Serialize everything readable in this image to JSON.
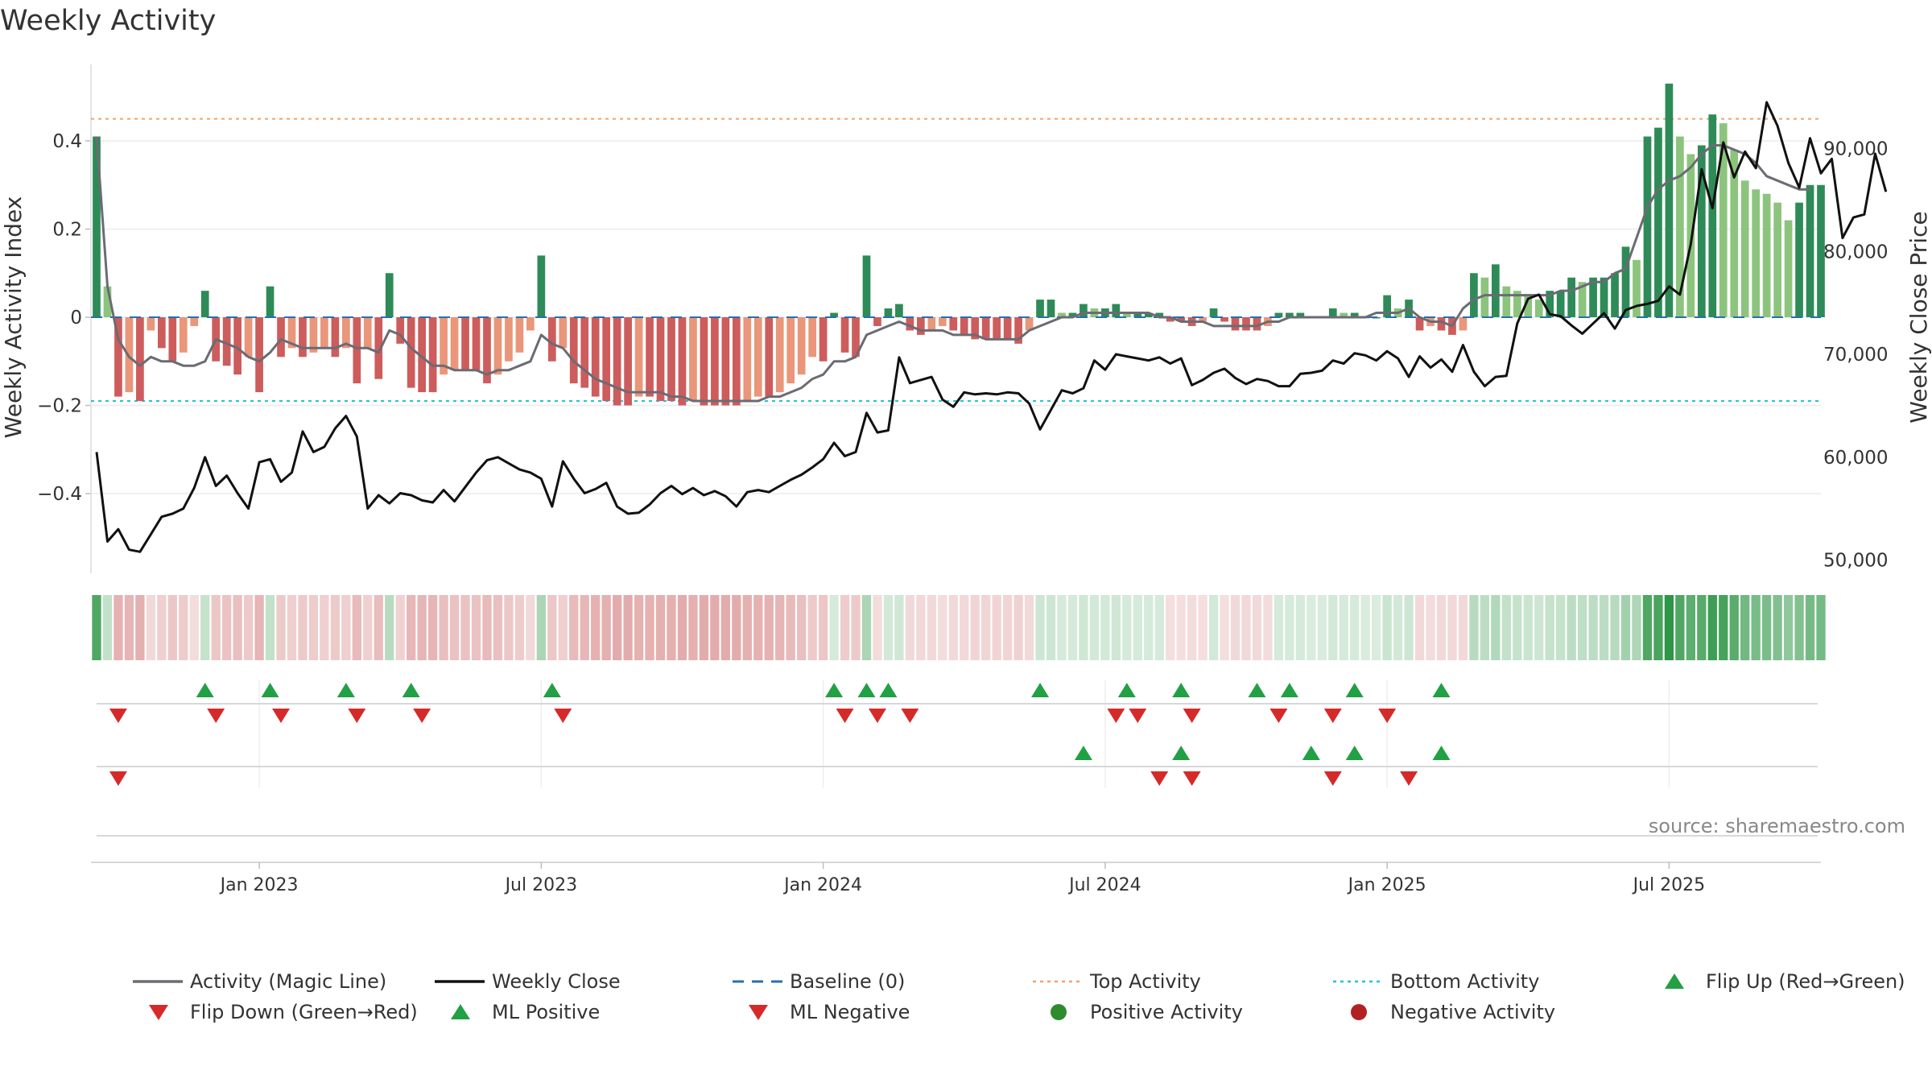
{
  "chart_data": {
    "type": "bar",
    "title": "Weekly Activity",
    "ylabel_left": "Weekly Activity Index",
    "ylabel_right": "Weekly Close Price",
    "source": "source: sharemaestro.com",
    "y_left_ticks": [
      "0.4",
      "0.2",
      "0",
      "−0.2",
      "−0.4"
    ],
    "y_left_tick_values": [
      0.4,
      0.2,
      0,
      -0.2,
      -0.4
    ],
    "y_left_range": [
      -0.58,
      0.57
    ],
    "y_right_ticks": [
      "90,000",
      "80,000",
      "70,000",
      "60,000",
      "50,000"
    ],
    "y_right_tick_values": [
      90000,
      80000,
      70000,
      60000,
      50000
    ],
    "y_right_range": [
      49000,
      96000
    ],
    "x_ticks": [
      "Jan 2023",
      "Jul 2023",
      "Jan 2024",
      "Jul 2024",
      "Jan 2025",
      "Jul 2025"
    ],
    "x_tick_weeks": [
      15,
      41,
      67,
      93,
      119,
      145
    ],
    "top_activity": 0.45,
    "bottom_activity": -0.19,
    "activity": [
      0.41,
      0.07,
      -0.18,
      -0.17,
      -0.19,
      -0.03,
      -0.07,
      -0.1,
      -0.08,
      -0.02,
      0.06,
      -0.1,
      -0.11,
      -0.13,
      -0.09,
      -0.17,
      0.07,
      -0.09,
      -0.07,
      -0.09,
      -0.08,
      -0.07,
      -0.09,
      -0.07,
      -0.15,
      -0.07,
      -0.14,
      0.1,
      -0.06,
      -0.16,
      -0.17,
      -0.17,
      -0.13,
      -0.12,
      -0.12,
      -0.12,
      -0.15,
      -0.13,
      -0.1,
      -0.08,
      -0.03,
      0.14,
      -0.1,
      -0.07,
      -0.15,
      -0.16,
      -0.18,
      -0.19,
      -0.2,
      -0.2,
      -0.18,
      -0.18,
      -0.19,
      -0.19,
      -0.2,
      -0.19,
      -0.2,
      -0.2,
      -0.2,
      -0.2,
      -0.19,
      -0.18,
      -0.18,
      -0.17,
      -0.15,
      -0.13,
      -0.09,
      -0.1,
      0.01,
      -0.08,
      -0.09,
      0.14,
      -0.02,
      0.02,
      0.03,
      -0.03,
      -0.04,
      -0.03,
      -0.02,
      -0.03,
      -0.04,
      -0.05,
      -0.05,
      -0.05,
      -0.05,
      -0.06,
      -0.03,
      0.04,
      0.04,
      0.01,
      0.01,
      0.03,
      0.02,
      0.02,
      0.03,
      0.01,
      0.01,
      0.01,
      0.01,
      -0.01,
      -0.01,
      -0.02,
      -0.01,
      0.02,
      -0.01,
      -0.03,
      -0.03,
      -0.03,
      -0.02,
      0.01,
      0.01,
      0.01,
      0.0,
      0.0,
      0.02,
      0.01,
      0.01,
      0.0,
      0.0,
      0.05,
      0.02,
      0.04,
      -0.03,
      -0.02,
      -0.03,
      -0.04,
      -0.03,
      0.1,
      0.09,
      0.12,
      0.07,
      0.06,
      0.05,
      0.04,
      0.06,
      0.06,
      0.09,
      0.08,
      0.09,
      0.09,
      0.1,
      0.16,
      0.13,
      0.41,
      0.43,
      0.53,
      0.41,
      0.37,
      0.39,
      0.46,
      0.44,
      0.38,
      0.31,
      0.29,
      0.28,
      0.26,
      0.22,
      0.26,
      0.3,
      0.3
    ],
    "magic_line": [
      0.41,
      0.07,
      -0.05,
      -0.09,
      -0.11,
      -0.09,
      -0.1,
      -0.1,
      -0.11,
      -0.11,
      -0.1,
      -0.05,
      -0.06,
      -0.07,
      -0.09,
      -0.1,
      -0.08,
      -0.05,
      -0.06,
      -0.07,
      -0.07,
      -0.07,
      -0.07,
      -0.06,
      -0.07,
      -0.07,
      -0.08,
      -0.03,
      -0.04,
      -0.07,
      -0.09,
      -0.11,
      -0.11,
      -0.12,
      -0.12,
      -0.12,
      -0.13,
      -0.12,
      -0.12,
      -0.11,
      -0.1,
      -0.04,
      -0.06,
      -0.07,
      -0.1,
      -0.12,
      -0.14,
      -0.15,
      -0.16,
      -0.17,
      -0.17,
      -0.17,
      -0.17,
      -0.18,
      -0.18,
      -0.19,
      -0.19,
      -0.19,
      -0.19,
      -0.19,
      -0.19,
      -0.19,
      -0.18,
      -0.18,
      -0.17,
      -0.16,
      -0.14,
      -0.13,
      -0.1,
      -0.1,
      -0.09,
      -0.04,
      -0.03,
      -0.02,
      -0.01,
      -0.02,
      -0.03,
      -0.03,
      -0.03,
      -0.04,
      -0.04,
      -0.04,
      -0.05,
      -0.05,
      -0.05,
      -0.05,
      -0.03,
      -0.02,
      -0.01,
      0.0,
      0.0,
      0.01,
      0.01,
      0.01,
      0.01,
      0.01,
      0.01,
      0.01,
      0.0,
      0.0,
      -0.01,
      -0.01,
      -0.01,
      -0.02,
      -0.02,
      -0.02,
      -0.02,
      -0.02,
      -0.01,
      -0.01,
      0.0,
      0.0,
      0.0,
      0.0,
      0.0,
      0.0,
      0.0,
      0.0,
      0.01,
      0.01,
      0.01,
      0.02,
      0.0,
      -0.01,
      -0.01,
      -0.02,
      0.02,
      0.04,
      0.05,
      0.05,
      0.05,
      0.05,
      0.05,
      0.05,
      0.05,
      0.06,
      0.06,
      0.07,
      0.08,
      0.08,
      0.1,
      0.11,
      0.18,
      0.25,
      0.29,
      0.31,
      0.32,
      0.34,
      0.37,
      0.39,
      0.39,
      0.38,
      0.37,
      0.35,
      0.32,
      0.31,
      0.3,
      0.29,
      0.29
    ],
    "weekly_close": [
      60500,
      51800,
      53000,
      51000,
      50800,
      52500,
      54200,
      54500,
      55000,
      57000,
      60000,
      57200,
      58200,
      56500,
      55000,
      59500,
      59800,
      57600,
      58500,
      62500,
      60500,
      61000,
      62800,
      64000,
      62000,
      55000,
      56300,
      55500,
      56500,
      56300,
      55800,
      55600,
      56800,
      55700,
      57100,
      58500,
      59700,
      60000,
      59400,
      58800,
      58500,
      57900,
      55200,
      59600,
      57900,
      56500,
      56900,
      57500,
      55200,
      54500,
      54600,
      55400,
      56500,
      57200,
      56400,
      57000,
      56300,
      56700,
      56200,
      55200,
      56600,
      56800,
      56600,
      57200,
      57800,
      58300,
      59000,
      59800,
      61400,
      60100,
      60500,
      64300,
      62400,
      62600,
      69700,
      67200,
      67500,
      67800,
      65600,
      64900,
      66300,
      66100,
      66200,
      66100,
      66300,
      66200,
      65200,
      62700,
      64600,
      66500,
      66200,
      66700,
      69400,
      68500,
      70000,
      69800,
      69600,
      69400,
      69700,
      69100,
      69600,
      67000,
      67500,
      68200,
      68600,
      67700,
      67100,
      67600,
      67400,
      66900,
      66900,
      68100,
      68200,
      68400,
      69400,
      69100,
      70100,
      69900,
      69400,
      70300,
      69600,
      67800,
      69800,
      68700,
      69500,
      68300,
      70900,
      68300,
      66900,
      67800,
      67900,
      73000,
      75400,
      75800,
      73900,
      73700,
      72800,
      72000,
      73000,
      74000,
      72500,
      74300,
      74700,
      74900,
      75200,
      76600,
      75800,
      80700,
      88000,
      84200,
      90600,
      87200,
      89700,
      88100,
      94500,
      92200,
      88600,
      86200,
      91000,
      87600,
      89000,
      81300,
      83300,
      83600,
      89500,
      85800
    ],
    "series_labels": [
      "Activity (Magic Line)",
      "Weekly Close",
      "Baseline (0)",
      "Top Activity",
      "Bottom Activity"
    ],
    "marker_rows": {
      "flip_up": [
        10,
        16,
        23,
        29,
        42,
        68,
        71,
        73,
        87,
        95,
        100,
        107,
        110,
        116,
        124
      ],
      "flip_down": [
        2,
        11,
        17,
        24,
        30,
        43,
        69,
        72,
        75,
        94,
        96,
        101,
        109,
        114,
        119
      ],
      "ml_positive": [
        91,
        100,
        112,
        116,
        124
      ],
      "ml_negative": [
        2,
        98,
        101,
        114,
        121
      ]
    },
    "legend": [
      {
        "label": "Activity (Magic Line)",
        "kind": "line",
        "color": "#6b6b74"
      },
      {
        "label": "Weekly Close",
        "kind": "line",
        "color": "#111111"
      },
      {
        "label": "Baseline (0)",
        "kind": "dash",
        "color": "#2a6fa8"
      },
      {
        "label": "Top Activity",
        "kind": "dot",
        "color": "#f0a26a"
      },
      {
        "label": "Bottom Activity",
        "kind": "dot",
        "color": "#22c3d6"
      },
      {
        "label": "Flip Up (Red→Green)",
        "kind": "tri-up",
        "color": "#21a044"
      },
      {
        "label": "Flip Down (Green→Red)",
        "kind": "tri-down",
        "color": "#d62a2a"
      },
      {
        "label": "ML Positive",
        "kind": "tri-up",
        "color": "#21a044"
      },
      {
        "label": "ML Negative",
        "kind": "tri-down",
        "color": "#d62a2a"
      },
      {
        "label": "Positive Activity",
        "kind": "circle",
        "color": "#2e8b2e"
      },
      {
        "label": "Negative Activity",
        "kind": "circle",
        "color": "#b22222"
      }
    ],
    "colors": {
      "pos_strong": "#2e8b57",
      "pos_light": "#8cc47d",
      "neg_strong": "#cd5c5c",
      "neg_light": "#e9967a",
      "close": "#111111",
      "magic": "#6b6b74"
    }
  }
}
